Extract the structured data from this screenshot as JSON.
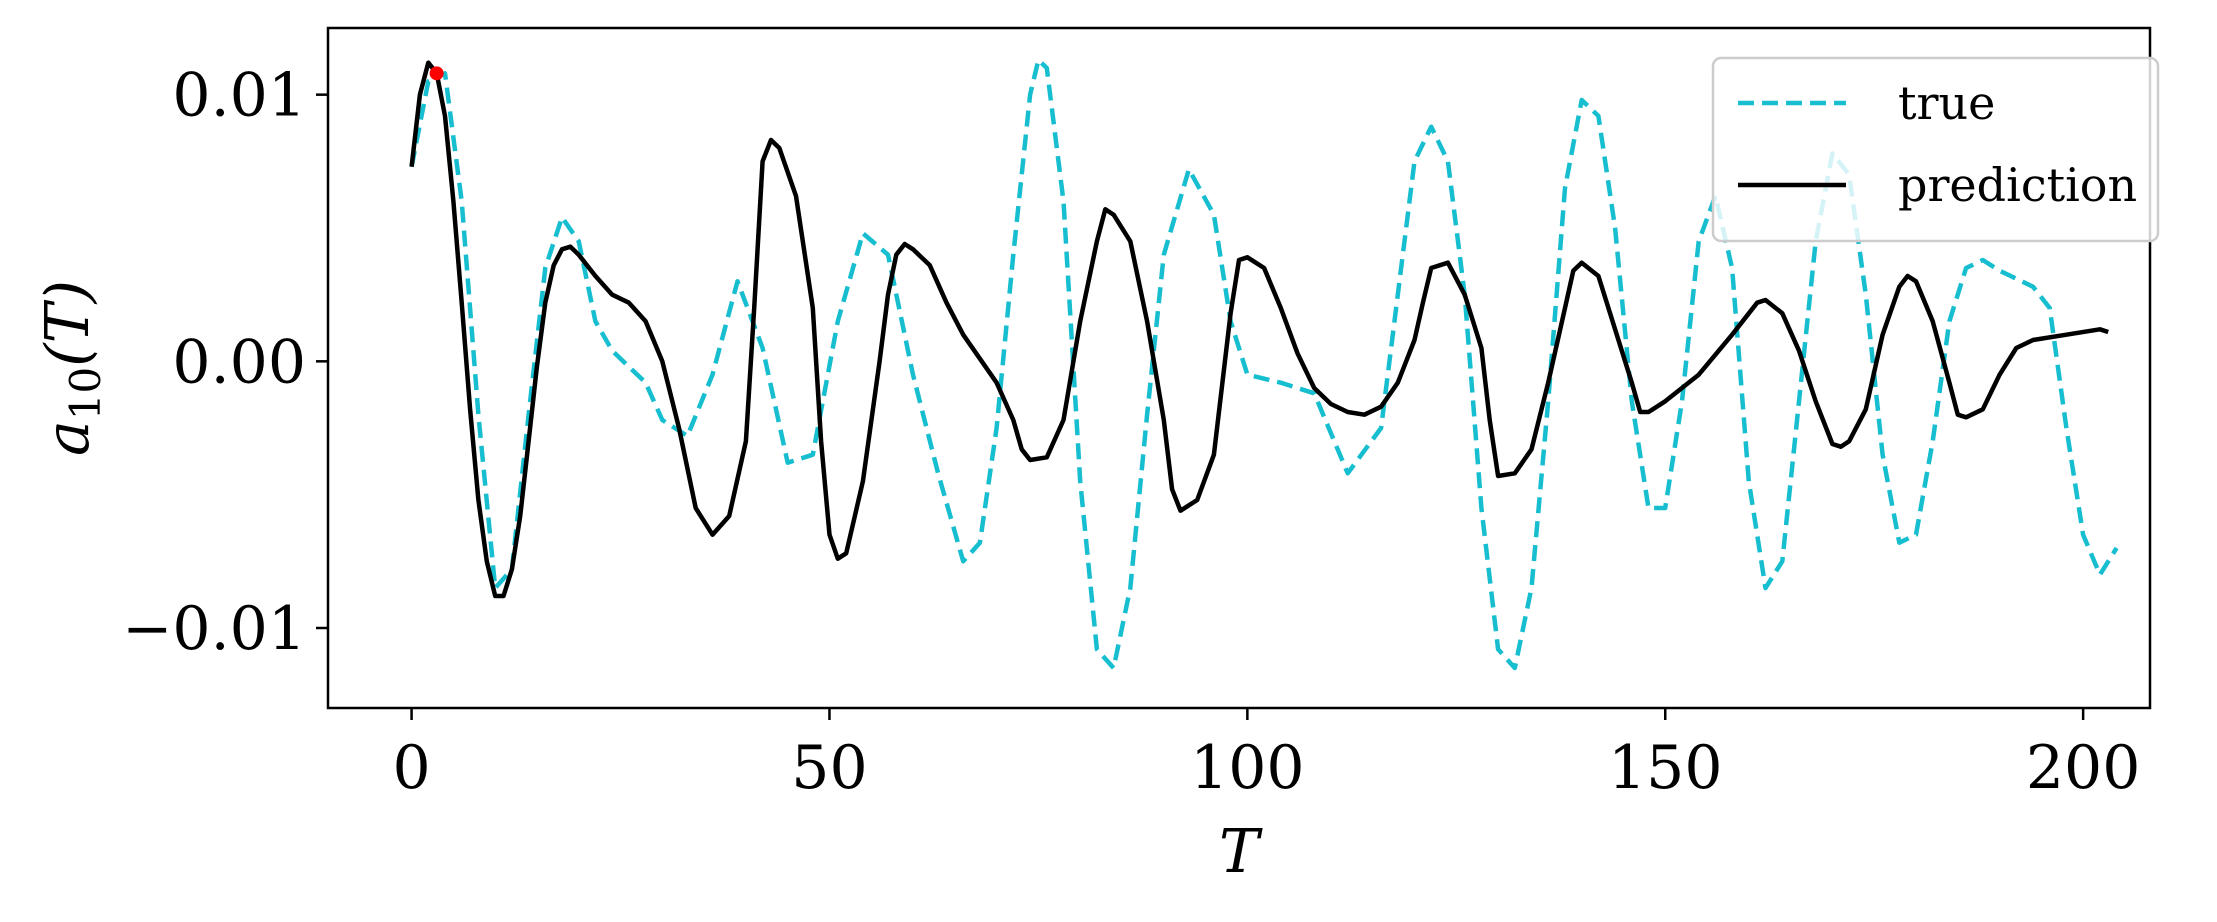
{
  "chart_data": {
    "type": "line",
    "xlabel": "T",
    "ylabel_main": "a",
    "ylabel_sub": "10",
    "ylabel_arg": "(T)",
    "xlim": [
      -10,
      208
    ],
    "ylim": [
      -0.013,
      0.0125
    ],
    "x_ticks": [
      0,
      50,
      100,
      150,
      200
    ],
    "x_tick_labels": [
      "0",
      "50",
      "100",
      "150",
      "200"
    ],
    "y_ticks": [
      0.01,
      0.0,
      -0.01
    ],
    "y_tick_labels": [
      "0.01",
      "0.00",
      "−0.01"
    ],
    "grid": false,
    "legend_position": "top-right",
    "marker": {
      "x": 3,
      "y": 0.0108,
      "color": "#ff0000"
    },
    "series": [
      {
        "name": "true",
        "style": "dashed",
        "color": "#17becf",
        "x": [
          0,
          2,
          4,
          6,
          8,
          10,
          12,
          14,
          16,
          18,
          20,
          22,
          24,
          26,
          28,
          30,
          33,
          36,
          39,
          42,
          45,
          48,
          51,
          54,
          57,
          60,
          63,
          66,
          68,
          70,
          72,
          74,
          75,
          76,
          78,
          80,
          82,
          84,
          86,
          88,
          90,
          93,
          96,
          98,
          100,
          104,
          108,
          112,
          116,
          118,
          120,
          122,
          124,
          126,
          128,
          130,
          132,
          134,
          136,
          138,
          140,
          142,
          144,
          146,
          148,
          150,
          152,
          154,
          156,
          158,
          160,
          162,
          164,
          166,
          168,
          170,
          172,
          174,
          176,
          178,
          180,
          182,
          184,
          186,
          188,
          190,
          194,
          196,
          198,
          200,
          202,
          204
        ],
        "y": [
          0.0073,
          0.0105,
          0.0108,
          0.006,
          -0.002,
          -0.0085,
          -0.0078,
          -0.002,
          0.0035,
          0.0054,
          0.0045,
          0.0015,
          0.0004,
          -0.0002,
          -0.0008,
          -0.0022,
          -0.0028,
          -0.0005,
          0.003,
          0.0005,
          -0.0038,
          -0.0035,
          0.0015,
          0.0048,
          0.004,
          -0.0005,
          -0.0042,
          -0.0075,
          -0.0068,
          -0.0025,
          0.004,
          0.01,
          0.0113,
          0.011,
          0.006,
          -0.0045,
          -0.0108,
          -0.0115,
          -0.0085,
          -0.002,
          0.004,
          0.0072,
          0.0055,
          0.0015,
          -0.0005,
          -0.0008,
          -0.0012,
          -0.0042,
          -0.0025,
          0.0025,
          0.0075,
          0.0088,
          0.0075,
          0.0025,
          -0.0055,
          -0.0108,
          -0.0115,
          -0.0085,
          -0.0015,
          0.0065,
          0.0098,
          0.0092,
          0.005,
          -0.0015,
          -0.0055,
          -0.0055,
          -0.0015,
          0.0045,
          0.0062,
          0.0035,
          -0.0045,
          -0.0085,
          -0.0075,
          -0.0015,
          0.0045,
          0.0078,
          0.007,
          0.0025,
          -0.0035,
          -0.0068,
          -0.0065,
          -0.003,
          0.0015,
          0.0035,
          0.0038,
          0.0034,
          0.0028,
          0.002,
          -0.0025,
          -0.0065,
          -0.008,
          -0.007
        ]
      },
      {
        "name": "prediction",
        "style": "solid",
        "color": "#000000",
        "x": [
          0,
          1,
          2,
          3,
          4,
          5,
          6,
          7,
          8,
          9,
          10,
          11,
          12,
          13,
          14,
          15,
          16,
          17,
          18,
          19,
          20,
          22,
          24,
          26,
          28,
          30,
          32,
          34,
          36,
          38,
          40,
          41,
          42,
          43,
          44,
          46,
          48,
          49,
          50,
          51,
          52,
          54,
          56,
          57,
          58,
          59,
          60,
          62,
          64,
          66,
          68,
          70,
          72,
          73,
          74,
          76,
          78,
          80,
          82,
          83,
          84,
          86,
          88,
          90,
          91,
          92,
          94,
          96,
          98,
          99,
          100,
          102,
          104,
          106,
          108,
          110,
          112,
          114,
          116,
          118,
          120,
          121,
          122,
          124,
          126,
          128,
          129,
          130,
          132,
          134,
          136,
          138,
          139,
          140,
          142,
          144,
          146,
          147,
          148,
          150,
          154,
          158,
          161,
          162,
          164,
          166,
          168,
          170,
          171,
          172,
          174,
          176,
          178,
          179,
          180,
          182,
          184,
          185,
          186,
          188,
          190,
          192,
          194,
          198,
          202,
          203
        ],
        "y": [
          0.0073,
          0.01,
          0.0112,
          0.0108,
          0.0092,
          0.006,
          0.0022,
          -0.0018,
          -0.0052,
          -0.0075,
          -0.0088,
          -0.0088,
          -0.0078,
          -0.0058,
          -0.003,
          -0.0002,
          0.0022,
          0.0036,
          0.0042,
          0.0043,
          0.004,
          0.0032,
          0.0025,
          0.0022,
          0.0015,
          0.0,
          -0.0025,
          -0.0055,
          -0.0065,
          -0.0058,
          -0.003,
          0.002,
          0.0075,
          0.0083,
          0.008,
          0.0062,
          0.002,
          -0.003,
          -0.0065,
          -0.0074,
          -0.0072,
          -0.0045,
          0.0,
          0.0025,
          0.004,
          0.0044,
          0.0042,
          0.0036,
          0.0022,
          0.001,
          0.0001,
          -0.0008,
          -0.0022,
          -0.0033,
          -0.0037,
          -0.0036,
          -0.0022,
          0.0015,
          0.0045,
          0.0057,
          0.0055,
          0.0045,
          0.0015,
          -0.0022,
          -0.0048,
          -0.0056,
          -0.0052,
          -0.0035,
          0.0018,
          0.0038,
          0.0039,
          0.0035,
          0.002,
          0.0003,
          -0.001,
          -0.0016,
          -0.0019,
          -0.002,
          -0.0017,
          -0.0008,
          0.0008,
          0.0022,
          0.0035,
          0.0037,
          0.0025,
          0.0005,
          -0.0022,
          -0.0043,
          -0.0042,
          -0.0033,
          -0.0008,
          0.002,
          0.0034,
          0.0037,
          0.0032,
          0.0012,
          -0.0008,
          -0.0019,
          -0.0019,
          -0.0015,
          -0.0005,
          0.001,
          0.0022,
          0.0023,
          0.0018,
          0.0004,
          -0.0015,
          -0.0031,
          -0.0032,
          -0.003,
          -0.0018,
          0.001,
          0.0028,
          0.0032,
          0.003,
          0.0015,
          -0.0008,
          -0.002,
          -0.0021,
          -0.0018,
          -0.0005,
          0.0005,
          0.0008,
          0.001,
          0.0012,
          0.0011
        ]
      }
    ]
  }
}
